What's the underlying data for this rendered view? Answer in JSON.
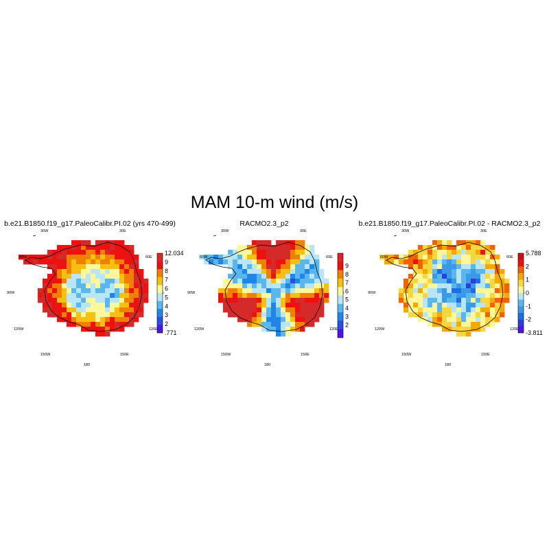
{
  "figure": {
    "title": "MAM 10-m wind (m/s)",
    "longitude_labels": [
      "30W",
      "30E",
      "60W",
      "60E",
      "90W",
      "90E",
      "120W",
      "120E",
      "150W",
      "150E",
      "180"
    ]
  },
  "panels": [
    {
      "title": "b.e21.B1850.f19_g17.PaleoCalibr.PI.02 (yrs 470-499)",
      "field": "model",
      "colorbar": {
        "labels": [
          "12.034",
          "9",
          "8",
          "7",
          "6",
          "5",
          "4",
          "3",
          "2",
          ".771"
        ],
        "colors": [
          "#d42a2a",
          "#ee1111",
          "#f08000",
          "#f5c010",
          "#fff89a",
          "#b9e6f7",
          "#5ab7ee",
          "#1f86e8",
          "#2a4ee0",
          "#4c14e8"
        ]
      }
    },
    {
      "title": "RACMO2.3_p2",
      "field": "racmo",
      "colorbar": {
        "labels": [
          "9",
          "8",
          "7",
          "6",
          "5",
          "4",
          "3",
          "2"
        ],
        "colors": [
          "#d42a2a",
          "#ee1111",
          "#f08000",
          "#f5c010",
          "#fff89a",
          "#b9e6f7",
          "#5ab7ee",
          "#1f86e8",
          "#2a4ee0",
          "#4c14e8"
        ]
      }
    },
    {
      "title": "b.e21.B1850.f19_g17.PaleoCalibr.PI.02 - RACMO2.3_p2",
      "field": "diff",
      "colorbar": {
        "labels": [
          "5.788",
          "2",
          "1",
          "0",
          "-1",
          "-2",
          "-3.811"
        ],
        "colors": [
          "#c81010",
          "#ee1111",
          "#f56000",
          "#f5a800",
          "#f8d640",
          "#fff89a",
          "#b9e6f7",
          "#5ab7ee",
          "#3a9ae8",
          "#1f6de6",
          "#2a3ee0",
          "#4c14e8"
        ]
      }
    }
  ],
  "chart_data": {
    "type": "heatmap",
    "title": "MAM 10-m wind (m/s)",
    "projection": "south polar stereographic",
    "panels": [
      {
        "name": "b.e21.B1850.f19_g17.PaleoCalibr.PI.02 (yrs 470-499)",
        "min": 0.771,
        "max": 12.034,
        "levels": [
          2,
          3,
          4,
          5,
          6,
          7,
          8,
          9
        ]
      },
      {
        "name": "RACMO2.3_p2",
        "levels": [
          2,
          3,
          4,
          5,
          6,
          7,
          8,
          9
        ]
      },
      {
        "name": "b.e21.B1850.f19_g17.PaleoCalibr.PI.02 - RACMO2.3_p2",
        "min": -3.811,
        "max": 5.788,
        "levels": [
          -2,
          -1,
          0,
          1,
          2
        ]
      }
    ]
  }
}
